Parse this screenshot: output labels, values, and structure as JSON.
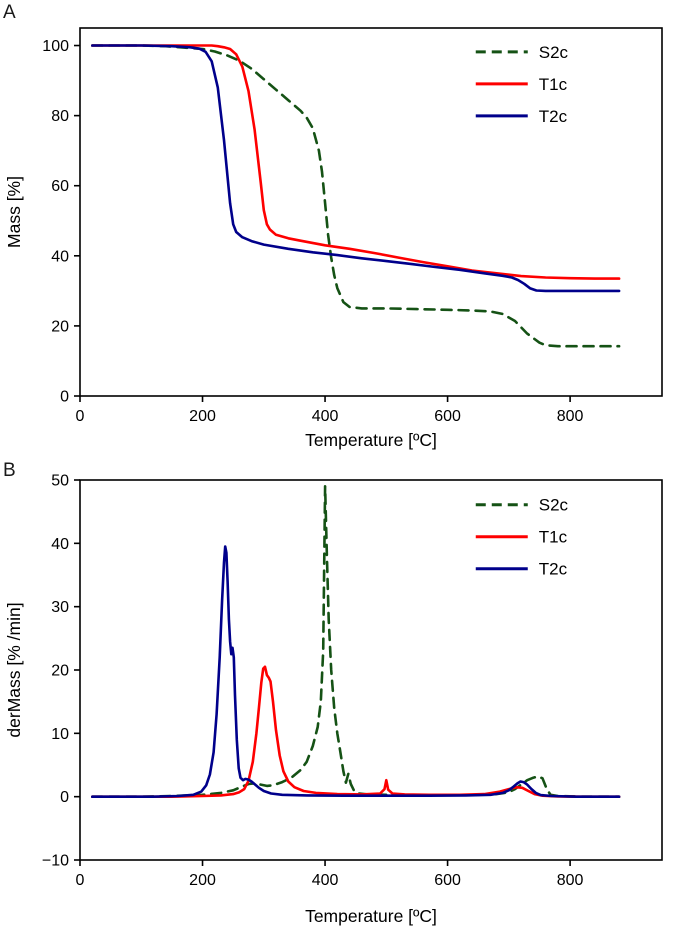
{
  "figure": {
    "panels": [
      {
        "label": "A"
      },
      {
        "label": "B"
      }
    ]
  },
  "colors": {
    "s2c": "#155215",
    "t1c": "#fe0000",
    "t2c": "#00008b",
    "axis": "#000000",
    "background": "#ffffff"
  },
  "chart_data": [
    {
      "type": "line",
      "panel": "A",
      "title": "",
      "xlabel": "Temperature [ºC]",
      "ylabel": "Mass [%]",
      "xlim": [
        0,
        950
      ],
      "ylim": [
        0,
        105
      ],
      "xticks": [
        0,
        200,
        400,
        600,
        800
      ],
      "yticks": [
        0,
        20,
        40,
        60,
        80,
        100
      ],
      "grid": false,
      "legend_position": "upper right",
      "series": [
        {
          "name": "S2c",
          "color": "#155215",
          "dash": "dashed",
          "points": [
            [
              20,
              100
            ],
            [
              60,
              100
            ],
            [
              100,
              100
            ],
            [
              140,
              99.8
            ],
            [
              180,
              99.3
            ],
            [
              200,
              99
            ],
            [
              220,
              98.3
            ],
            [
              240,
              97.2
            ],
            [
              260,
              95.7
            ],
            [
              280,
              93.4
            ],
            [
              300,
              90.4
            ],
            [
              320,
              87.4
            ],
            [
              340,
              84.4
            ],
            [
              360,
              81.4
            ],
            [
              370,
              79.4
            ],
            [
              380,
              76.4
            ],
            [
              390,
              70
            ],
            [
              395,
              64
            ],
            [
              400,
              55
            ],
            [
              405,
              46
            ],
            [
              410,
              39.5
            ],
            [
              415,
              34.5
            ],
            [
              420,
              30.8
            ],
            [
              430,
              26.8
            ],
            [
              440,
              25.4
            ],
            [
              460,
              25
            ],
            [
              500,
              25
            ],
            [
              550,
              24.8
            ],
            [
              600,
              24.6
            ],
            [
              640,
              24.4
            ],
            [
              670,
              24.1
            ],
            [
              690,
              23.4
            ],
            [
              710,
              21.4
            ],
            [
              730,
              17.8
            ],
            [
              750,
              15.2
            ],
            [
              760,
              14.5
            ],
            [
              780,
              14.2
            ],
            [
              820,
              14.2
            ],
            [
              880,
              14.2
            ]
          ]
        },
        {
          "name": "T1c",
          "color": "#fe0000",
          "dash": "solid",
          "points": [
            [
              20,
              100
            ],
            [
              100,
              100
            ],
            [
              160,
              100
            ],
            [
              200,
              100
            ],
            [
              215,
              100
            ],
            [
              225,
              99.8
            ],
            [
              235,
              99.5
            ],
            [
              245,
              99
            ],
            [
              255,
              97.5
            ],
            [
              265,
              94
            ],
            [
              275,
              87
            ],
            [
              285,
              76
            ],
            [
              295,
              61
            ],
            [
              300,
              53
            ],
            [
              305,
              49
            ],
            [
              310,
              47.5
            ],
            [
              320,
              46
            ],
            [
              340,
              45
            ],
            [
              360,
              44.3
            ],
            [
              400,
              43
            ],
            [
              440,
              42
            ],
            [
              480,
              40.8
            ],
            [
              520,
              39.5
            ],
            [
              560,
              38.2
            ],
            [
              600,
              37
            ],
            [
              640,
              35.8
            ],
            [
              680,
              35
            ],
            [
              720,
              34.2
            ],
            [
              760,
              33.8
            ],
            [
              800,
              33.6
            ],
            [
              840,
              33.5
            ],
            [
              880,
              33.5
            ]
          ]
        },
        {
          "name": "T2c",
          "color": "#00008b",
          "dash": "solid",
          "points": [
            [
              20,
              100
            ],
            [
              100,
              100
            ],
            [
              150,
              99.8
            ],
            [
              180,
              99.5
            ],
            [
              195,
              99.1
            ],
            [
              205,
              98.2
            ],
            [
              215,
              95.5
            ],
            [
              225,
              88
            ],
            [
              235,
              73
            ],
            [
              245,
              55
            ],
            [
              250,
              49
            ],
            [
              255,
              46.8
            ],
            [
              265,
              45.3
            ],
            [
              280,
              44.2
            ],
            [
              300,
              43.2
            ],
            [
              340,
              42
            ],
            [
              380,
              41
            ],
            [
              420,
              40.2
            ],
            [
              460,
              39.3
            ],
            [
              500,
              38.5
            ],
            [
              540,
              37.7
            ],
            [
              580,
              36.8
            ],
            [
              620,
              36
            ],
            [
              660,
              35
            ],
            [
              690,
              34.3
            ],
            [
              705,
              33.8
            ],
            [
              715,
              33.1
            ],
            [
              725,
              32
            ],
            [
              735,
              30.7
            ],
            [
              745,
              30.1
            ],
            [
              760,
              30
            ],
            [
              800,
              30
            ],
            [
              880,
              30
            ]
          ]
        }
      ]
    },
    {
      "type": "line",
      "panel": "B",
      "title": "",
      "xlabel": "Temperature [ºC]",
      "ylabel": "derMass [% /min]",
      "xlim": [
        0,
        950
      ],
      "ylim": [
        -10,
        50
      ],
      "xticks": [
        0,
        200,
        400,
        600,
        800
      ],
      "yticks": [
        -10,
        0,
        10,
        20,
        30,
        40,
        50
      ],
      "grid": false,
      "legend_position": "upper right",
      "series": [
        {
          "name": "S2c",
          "color": "#155215",
          "dash": "dashed",
          "points": [
            [
              20,
              0
            ],
            [
              100,
              0
            ],
            [
              150,
              0.1
            ],
            [
              200,
              0.3
            ],
            [
              230,
              0.6
            ],
            [
              250,
              1
            ],
            [
              265,
              1.6
            ],
            [
              275,
              2
            ],
            [
              285,
              2.1
            ],
            [
              295,
              1.9
            ],
            [
              305,
              1.7
            ],
            [
              315,
              1.8
            ],
            [
              330,
              2.3
            ],
            [
              345,
              3
            ],
            [
              360,
              4.2
            ],
            [
              370,
              5.5
            ],
            [
              380,
              8
            ],
            [
              388,
              11
            ],
            [
              393,
              15
            ],
            [
              397,
              23
            ],
            [
              400,
              49
            ],
            [
              403,
              38
            ],
            [
              406,
              28
            ],
            [
              410,
              20
            ],
            [
              415,
              14
            ],
            [
              420,
              10
            ],
            [
              425,
              7
            ],
            [
              430,
              4
            ],
            [
              434,
              2.2
            ],
            [
              438,
              3.6
            ],
            [
              442,
              2
            ],
            [
              448,
              0.8
            ],
            [
              455,
              0.5
            ],
            [
              470,
              0.35
            ],
            [
              500,
              0.3
            ],
            [
              550,
              0.25
            ],
            [
              600,
              0.25
            ],
            [
              650,
              0.3
            ],
            [
              680,
              0.4
            ],
            [
              700,
              0.7
            ],
            [
              710,
              1.2
            ],
            [
              720,
              1.9
            ],
            [
              730,
              2.6
            ],
            [
              740,
              3
            ],
            [
              748,
              3.2
            ],
            [
              755,
              2.9
            ],
            [
              762,
              1.2
            ],
            [
              768,
              0.3
            ],
            [
              780,
              0.1
            ],
            [
              820,
              0
            ],
            [
              880,
              0
            ]
          ]
        },
        {
          "name": "T1c",
          "color": "#fe0000",
          "dash": "solid",
          "points": [
            [
              20,
              0
            ],
            [
              150,
              0
            ],
            [
              200,
              0.1
            ],
            [
              230,
              0.2
            ],
            [
              250,
              0.4
            ],
            [
              260,
              0.7
            ],
            [
              268,
              1.2
            ],
            [
              275,
              2.5
            ],
            [
              282,
              5.5
            ],
            [
              288,
              10
            ],
            [
              292,
              14
            ],
            [
              296,
              18
            ],
            [
              299,
              20.2
            ],
            [
              302,
              20.5
            ],
            [
              305,
              19.2
            ],
            [
              308,
              18.8
            ],
            [
              311,
              18.2
            ],
            [
              315,
              15
            ],
            [
              320,
              10.5
            ],
            [
              326,
              6.5
            ],
            [
              332,
              4
            ],
            [
              340,
              2.4
            ],
            [
              350,
              1.5
            ],
            [
              365,
              0.9
            ],
            [
              385,
              0.6
            ],
            [
              420,
              0.4
            ],
            [
              460,
              0.35
            ],
            [
              490,
              0.5
            ],
            [
              497,
              1.2
            ],
            [
              500,
              2.6
            ],
            [
              503,
              1.1
            ],
            [
              510,
              0.5
            ],
            [
              530,
              0.35
            ],
            [
              570,
              0.3
            ],
            [
              620,
              0.3
            ],
            [
              660,
              0.4
            ],
            [
              685,
              0.8
            ],
            [
              700,
              1.2
            ],
            [
              712,
              1.5
            ],
            [
              722,
              1.4
            ],
            [
              732,
              0.9
            ],
            [
              742,
              0.4
            ],
            [
              755,
              0.15
            ],
            [
              780,
              0.05
            ],
            [
              820,
              0
            ],
            [
              880,
              0
            ]
          ]
        },
        {
          "name": "T2c",
          "color": "#00008b",
          "dash": "solid",
          "points": [
            [
              20,
              0
            ],
            [
              120,
              0
            ],
            [
              160,
              0.1
            ],
            [
              185,
              0.3
            ],
            [
              198,
              0.8
            ],
            [
              206,
              1.8
            ],
            [
              212,
              3.5
            ],
            [
              218,
              7
            ],
            [
              223,
              13
            ],
            [
              228,
              22
            ],
            [
              232,
              31
            ],
            [
              235,
              37
            ],
            [
              237,
              39.5
            ],
            [
              239,
              38.5
            ],
            [
              241,
              34
            ],
            [
              243,
              28
            ],
            [
              245,
              24.5
            ],
            [
              247,
              22.5
            ],
            [
              249,
              23.5
            ],
            [
              251,
              22
            ],
            [
              253,
              16
            ],
            [
              256,
              9
            ],
            [
              259,
              4.5
            ],
            [
              262,
              3
            ],
            [
              266,
              2.6
            ],
            [
              270,
              2.8
            ],
            [
              275,
              2.7
            ],
            [
              280,
              2.4
            ],
            [
              286,
              1.9
            ],
            [
              292,
              1.4
            ],
            [
              300,
              0.9
            ],
            [
              312,
              0.5
            ],
            [
              330,
              0.3
            ],
            [
              370,
              0.2
            ],
            [
              430,
              0.15
            ],
            [
              500,
              0.15
            ],
            [
              570,
              0.15
            ],
            [
              630,
              0.2
            ],
            [
              670,
              0.3
            ],
            [
              690,
              0.6
            ],
            [
              700,
              1
            ],
            [
              708,
              1.6
            ],
            [
              714,
              2.1
            ],
            [
              719,
              2.4
            ],
            [
              724,
              2.3
            ],
            [
              730,
              1.9
            ],
            [
              737,
              1.2
            ],
            [
              744,
              0.6
            ],
            [
              752,
              0.25
            ],
            [
              770,
              0.1
            ],
            [
              810,
              0
            ],
            [
              880,
              0
            ]
          ]
        }
      ]
    }
  ]
}
